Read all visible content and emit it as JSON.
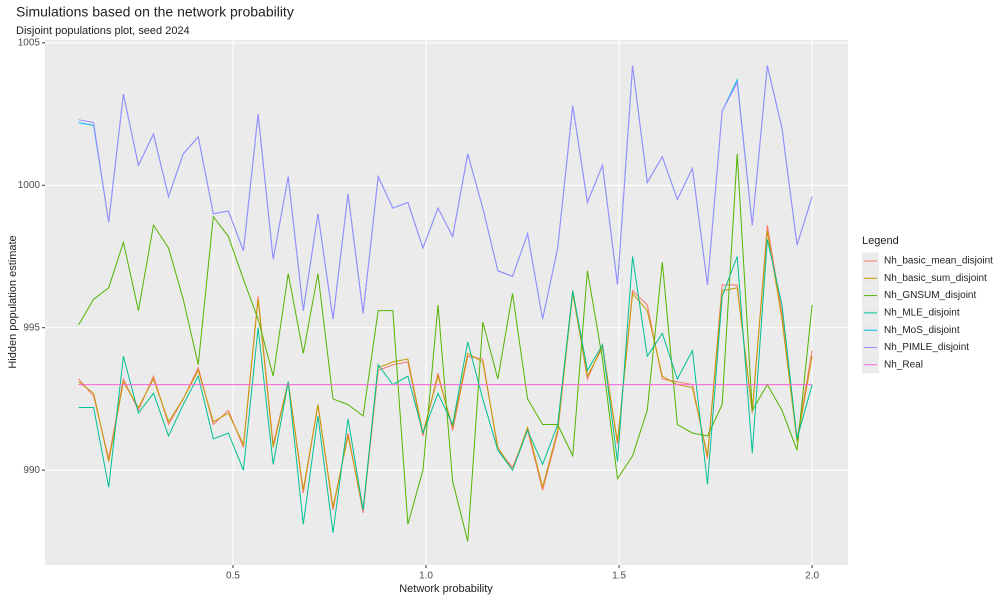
{
  "chart_data": {
    "type": "line",
    "title": "Simulations based on the network probability",
    "subtitle": "Disjoint populations plot, seed 2024",
    "x_label": "Network probability",
    "y_label": "Hidden population estimate",
    "legend_title": "Legend",
    "legend_position": "right",
    "grid": true,
    "x": [
      0.1,
      0.139,
      0.178,
      0.216,
      0.255,
      0.294,
      0.333,
      0.371,
      0.41,
      0.449,
      0.488,
      0.527,
      0.565,
      0.604,
      0.643,
      0.682,
      0.72,
      0.759,
      0.798,
      0.837,
      0.876,
      0.914,
      0.953,
      0.992,
      1.031,
      1.069,
      1.108,
      1.147,
      1.186,
      1.224,
      1.263,
      1.302,
      1.341,
      1.38,
      1.418,
      1.457,
      1.496,
      1.535,
      1.573,
      1.612,
      1.651,
      1.69,
      1.729,
      1.767,
      1.806,
      1.845,
      1.884,
      1.922,
      1.961,
      2.0
    ],
    "xlim": [
      0.013,
      2.093
    ],
    "xticks": [
      0.5,
      {
        "value": 1,
        "label": "1.0"
      },
      1.5,
      {
        "value": 2,
        "label": "2.0"
      }
    ],
    "ylim": [
      986.67,
      1005.1
    ],
    "yticks": [
      990,
      995,
      1000,
      1005
    ],
    "series": [
      {
        "name": "Nh_basic_mean_disjoint",
        "color": "#F8766D",
        "values": [
          993.2,
          992.6,
          990.4,
          993.2,
          992.1,
          993.3,
          991.6,
          992.5,
          993.6,
          991.6,
          992.1,
          990.8,
          996.1,
          990.9,
          993.1,
          989.2,
          992.3,
          988.6,
          991.3,
          988.5,
          993.5,
          993.7,
          993.8,
          991.2,
          993.4,
          991.4,
          994.0,
          993.9,
          990.7,
          990.1,
          991.4,
          989.3,
          991.3,
          996.3,
          993.2,
          994.4,
          990.9,
          996.3,
          995.8,
          993.2,
          993.1,
          993.0,
          990.4,
          996.5,
          996.5,
          992.0,
          998.6,
          995.5,
          991.1,
          994.2
        ]
      },
      {
        "name": "Nh_basic_sum_disjoint",
        "color": "#C49A00",
        "values": [
          993.1,
          992.7,
          990.3,
          993.1,
          992.2,
          993.2,
          991.7,
          992.5,
          993.5,
          991.7,
          992.0,
          990.9,
          996.0,
          990.8,
          993.1,
          989.3,
          992.3,
          988.7,
          991.2,
          988.6,
          993.6,
          993.8,
          993.9,
          991.3,
          993.3,
          991.5,
          994.1,
          993.8,
          990.8,
          990.0,
          991.5,
          989.4,
          991.4,
          996.2,
          993.3,
          994.3,
          991.0,
          996.2,
          995.6,
          993.3,
          993.0,
          992.9,
          990.5,
          996.3,
          996.4,
          992.1,
          998.4,
          995.3,
          991.0,
          994.0
        ]
      },
      {
        "name": "Nh_GNSUM_disjoint",
        "color": "#53B400",
        "values": [
          995.1,
          996.0,
          996.4,
          998.0,
          995.6,
          998.6,
          997.8,
          996.0,
          993.7,
          998.9,
          998.2,
          996.7,
          995.3,
          993.3,
          996.9,
          994.1,
          996.9,
          992.5,
          992.3,
          991.9,
          995.6,
          995.6,
          988.1,
          990.0,
          995.8,
          989.6,
          987.5,
          995.2,
          993.2,
          996.2,
          992.5,
          991.6,
          991.6,
          990.5,
          997.0,
          993.9,
          989.7,
          990.5,
          992.1,
          997.3,
          991.6,
          991.3,
          991.2,
          992.3,
          1001.1,
          992.1,
          993.0,
          992.1,
          990.7,
          995.8
        ]
      },
      {
        "name": "Nh_MLE_disjoint",
        "color": "#00C094",
        "values": [
          992.2,
          992.2,
          989.4,
          994.0,
          992.0,
          992.7,
          991.2,
          992.3,
          993.3,
          991.1,
          991.3,
          990.0,
          995.0,
          990.2,
          993.1,
          988.1,
          991.9,
          987.8,
          991.8,
          988.6,
          993.7,
          993.0,
          993.3,
          991.3,
          992.7,
          991.6,
          994.5,
          992.5,
          990.7,
          990.0,
          991.4,
          990.2,
          991.6,
          996.3,
          993.5,
          994.4,
          990.3,
          997.5,
          994.0,
          994.8,
          993.2,
          994.2,
          989.5,
          996.1,
          997.5,
          990.6,
          998.1,
          995.8,
          991.1,
          993.0
        ]
      },
      {
        "name": "Nh_MoS_disjoint",
        "color": "#00B6EB",
        "values": [
          1002.2,
          1002.1,
          998.7,
          1003.2,
          1000.7,
          1001.8,
          999.6,
          1001.1,
          1001.7,
          999.0,
          999.1,
          997.7,
          1002.5,
          997.4,
          1000.3,
          995.6,
          999.0,
          995.3,
          999.7,
          995.5,
          1000.3,
          999.2,
          999.4,
          997.8,
          999.2,
          998.2,
          1001.1,
          999.2,
          997.0,
          996.8,
          998.3,
          995.3,
          997.8,
          1002.8,
          999.4,
          1000.7,
          996.5,
          1004.2,
          1000.1,
          1001.0,
          999.5,
          1000.6,
          996.5,
          1002.6,
          1003.7,
          998.6,
          1004.2,
          1002.0,
          997.9,
          999.6
        ]
      },
      {
        "name": "Nh_PIMLE_disjoint",
        "color": "#A58AFF",
        "values": [
          1002.3,
          1002.2,
          998.7,
          1003.2,
          1000.7,
          1001.8,
          999.6,
          1001.1,
          1001.7,
          999.0,
          999.1,
          997.7,
          1002.5,
          997.4,
          1000.3,
          995.6,
          999.0,
          995.3,
          999.7,
          995.5,
          1000.3,
          999.2,
          999.4,
          997.8,
          999.2,
          998.2,
          1001.1,
          999.2,
          997.0,
          996.8,
          998.3,
          995.3,
          997.8,
          1002.8,
          999.4,
          1000.7,
          996.5,
          1004.2,
          1000.1,
          1001.0,
          999.5,
          1000.6,
          996.5,
          1002.6,
          1003.6,
          998.6,
          1004.2,
          1002.0,
          997.9,
          999.6
        ]
      },
      {
        "name": "Nh_Real",
        "color": "#FB61D7",
        "values": [
          993,
          993,
          993,
          993,
          993,
          993,
          993,
          993,
          993,
          993,
          993,
          993,
          993,
          993,
          993,
          993,
          993,
          993,
          993,
          993,
          993,
          993,
          993,
          993,
          993,
          993,
          993,
          993,
          993,
          993,
          993,
          993,
          993,
          993,
          993,
          993,
          993,
          993,
          993,
          993,
          993,
          993,
          993,
          993,
          993,
          993,
          993,
          993,
          993,
          993
        ]
      }
    ]
  }
}
